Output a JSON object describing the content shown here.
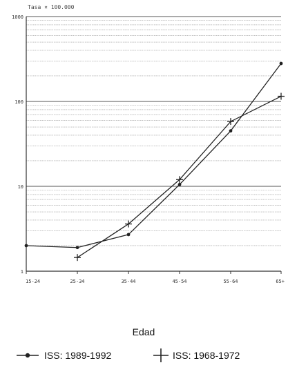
{
  "chart_data": {
    "type": "line",
    "y_axis_title": "Tasa × 100.000",
    "xlabel": "Edad",
    "y_scale": "log",
    "ylim": [
      1,
      1000
    ],
    "y_tick_labels": [
      "1",
      "10",
      "100",
      "1000"
    ],
    "grid": true,
    "legend_position": "bottom",
    "categories": [
      "15-24",
      "25-34",
      "35-44",
      "45-54",
      "55-64",
      "65+"
    ],
    "series": [
      {
        "name": "ISS: 1989-1992",
        "marker": "dot",
        "color": "#222222",
        "values": [
          2.0,
          1.9,
          2.7,
          10.5,
          45,
          280
        ]
      },
      {
        "name": "ISS: 1968-1972",
        "marker": "plus",
        "color": "#222222",
        "values": [
          null,
          1.45,
          3.6,
          12,
          58,
          115
        ]
      }
    ]
  }
}
